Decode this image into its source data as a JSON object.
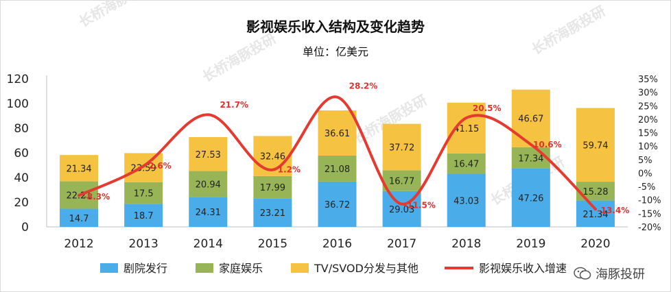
{
  "watermark": "长桥海豚投研",
  "brand": {
    "icon": "wechat-icon",
    "label": "海豚投研"
  },
  "colors": {
    "box_office": "#4aace8",
    "home": "#97b557",
    "tv_svod": "#f6c242",
    "growth": "#e53a2f"
  },
  "chart_data": {
    "type": "bar",
    "stacked": true,
    "title": "影视娱乐收入结构及变化趋势",
    "subtitle": "单位：亿美元",
    "categories": [
      "2012",
      "2013",
      "2014",
      "2015",
      "2016",
      "2017",
      "2018",
      "2019",
      "2020"
    ],
    "series": [
      {
        "name": "剧院发行",
        "values": [
          14.7,
          18.7,
          24.31,
          23.21,
          36.72,
          29.03,
          43.03,
          47.26,
          21.34
        ]
      },
      {
        "name": "家庭娱乐",
        "values": [
          22.21,
          17.5,
          20.94,
          17.99,
          21.08,
          16.77,
          16.47,
          17.34,
          15.28
        ]
      },
      {
        "name": "TV/SVOD分发与其他",
        "values": [
          21.34,
          23.59,
          27.53,
          32.46,
          36.61,
          37.72,
          41.15,
          46.67,
          59.74
        ]
      }
    ],
    "line_series": {
      "name": "影视娱乐收入增速",
      "axis": "right",
      "values": [
        -8.3,
        2.6,
        21.7,
        1.2,
        28.2,
        -11.5,
        20.5,
        10.6,
        -13.4
      ],
      "labels": [
        "-8.3%",
        "2.6%",
        "21.7%",
        "1.2%",
        "28.2%",
        "-11.5%",
        "20.5%",
        "10.6%",
        "-13.4%"
      ]
    },
    "ylim": [
      0,
      120
    ],
    "yticks": [
      "0",
      "20",
      "40",
      "60",
      "80",
      "100",
      "120"
    ],
    "y2lim": [
      -20,
      35
    ],
    "y2ticks": [
      "-20%",
      "-15%",
      "-10%",
      "-5%",
      "0%",
      "5%",
      "10%",
      "15%",
      "20%",
      "25%",
      "30%",
      "35%"
    ],
    "legend_position": "bottom"
  }
}
